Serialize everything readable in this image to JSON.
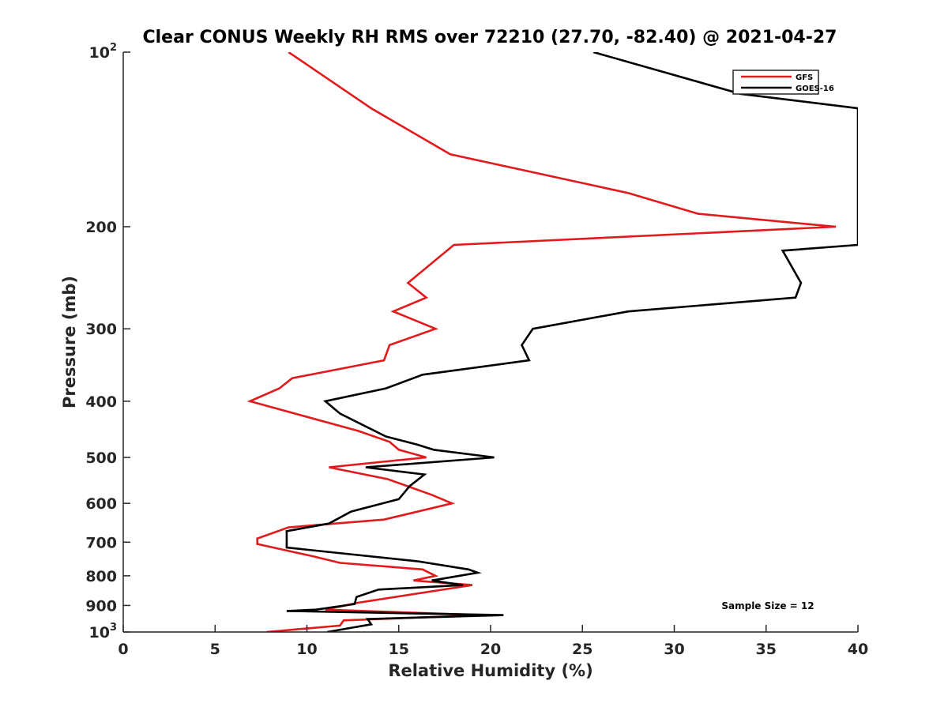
{
  "chart_data": {
    "type": "line",
    "title": "Clear CONUS Weekly RH RMS over 72210 (27.70, -82.40) @ 2021-04-27",
    "xlabel": "Relative Humidity (%)",
    "ylabel": "Pressure (mb)",
    "xlim": [
      0,
      40
    ],
    "ylim": [
      100,
      1000
    ],
    "y_scale": "log",
    "y_reversed": true,
    "grid": false,
    "legend_position": "top-right",
    "x_ticks": [
      "0",
      "5",
      "10",
      "15",
      "20",
      "25",
      "30",
      "35",
      "40"
    ],
    "y_ticks": [
      {
        "value": 100,
        "base": "10",
        "exp": "2"
      },
      {
        "value": 200,
        "label": "200"
      },
      {
        "value": 300,
        "label": "300"
      },
      {
        "value": 400,
        "label": "400"
      },
      {
        "value": 500,
        "label": "500"
      },
      {
        "value": 600,
        "label": "600"
      },
      {
        "value": 700,
        "label": "700"
      },
      {
        "value": 800,
        "label": "800"
      },
      {
        "value": 900,
        "label": "900"
      },
      {
        "value": 1000,
        "base": "10",
        "exp": "3"
      }
    ],
    "annotation": "Sample Size = 12",
    "series": [
      {
        "name": "GFS",
        "color": "#e31a1c",
        "points": [
          [
            9.0,
            100
          ],
          [
            13.5,
            125
          ],
          [
            17.8,
            150
          ],
          [
            27.5,
            175
          ],
          [
            31.3,
            190
          ],
          [
            38.8,
            200
          ],
          [
            18.0,
            215
          ],
          [
            15.5,
            250
          ],
          [
            16.5,
            265
          ],
          [
            14.7,
            280
          ],
          [
            17.0,
            300
          ],
          [
            14.5,
            320
          ],
          [
            14.2,
            340
          ],
          [
            9.2,
            365
          ],
          [
            8.5,
            380
          ],
          [
            6.9,
            400
          ],
          [
            12.8,
            450
          ],
          [
            14.5,
            470
          ],
          [
            15.0,
            485
          ],
          [
            16.5,
            500
          ],
          [
            11.2,
            520
          ],
          [
            14.4,
            545
          ],
          [
            16.8,
            580
          ],
          [
            17.9,
            600
          ],
          [
            14.2,
            640
          ],
          [
            9.0,
            660
          ],
          [
            7.3,
            690
          ],
          [
            7.3,
            705
          ],
          [
            10.3,
            740
          ],
          [
            11.8,
            760
          ],
          [
            16.3,
            780
          ],
          [
            17.0,
            800
          ],
          [
            15.8,
            815
          ],
          [
            19.0,
            830
          ],
          [
            12.8,
            890
          ],
          [
            11.0,
            915
          ],
          [
            19.5,
            935
          ],
          [
            12.0,
            955
          ],
          [
            11.8,
            975
          ],
          [
            7.8,
            1000
          ]
        ]
      },
      {
        "name": "GOES-16",
        "color": "#000000",
        "points": [
          [
            25.6,
            100
          ],
          [
            33.6,
            118
          ],
          [
            40.0,
            125
          ],
          [
            40.0,
            215
          ],
          [
            35.9,
            220
          ],
          [
            36.9,
            250
          ],
          [
            36.6,
            265
          ],
          [
            27.5,
            280
          ],
          [
            22.3,
            300
          ],
          [
            21.7,
            320
          ],
          [
            22.1,
            340
          ],
          [
            16.3,
            360
          ],
          [
            14.3,
            380
          ],
          [
            11.0,
            400
          ],
          [
            11.8,
            420
          ],
          [
            14.3,
            460
          ],
          [
            16.0,
            475
          ],
          [
            16.9,
            485
          ],
          [
            20.2,
            500
          ],
          [
            13.2,
            520
          ],
          [
            16.4,
            535
          ],
          [
            15.6,
            560
          ],
          [
            15.0,
            590
          ],
          [
            12.4,
            620
          ],
          [
            11.2,
            650
          ],
          [
            8.9,
            670
          ],
          [
            8.9,
            700
          ],
          [
            8.9,
            715
          ],
          [
            16.0,
            755
          ],
          [
            18.8,
            780
          ],
          [
            19.3,
            790
          ],
          [
            16.8,
            815
          ],
          [
            18.5,
            830
          ],
          [
            13.9,
            845
          ],
          [
            12.7,
            870
          ],
          [
            12.6,
            895
          ],
          [
            10.5,
            915
          ],
          [
            8.9,
            920
          ],
          [
            20.7,
            935
          ],
          [
            13.3,
            950
          ],
          [
            13.5,
            970
          ],
          [
            11.1,
            1000
          ]
        ]
      }
    ]
  }
}
